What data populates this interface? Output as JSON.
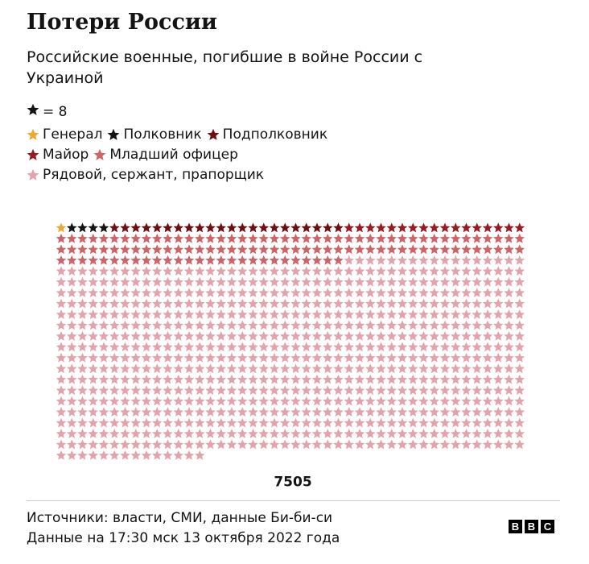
{
  "chart_data": {
    "type": "unit",
    "title": "Потери России",
    "subtitle": "Российские военные, погибшие в войне России с Украиной",
    "unit_label": "= 8",
    "unit_color": "#141414",
    "columns": 44,
    "series": [
      {
        "name": "Генерал",
        "color": "#f0a830",
        "value": 1
      },
      {
        "name": "Полковник",
        "color": "#141414",
        "value": 4
      },
      {
        "name": "Подполковник",
        "color": "#6e0d12",
        "value": 22
      },
      {
        "name": "Майор",
        "color": "#981a22",
        "value": 17
      },
      {
        "name": "Младший офицер",
        "color": "#cc6468",
        "value": 115
      },
      {
        "name": "Рядовой, сержант, прапорщик",
        "color": "#e3a3ab",
        "value": 779
      }
    ],
    "total": 7505,
    "source": "Источники: власти, СМИ, данные Би-би-си",
    "date": "Данные на 17:30 мск 13 октября 2022 года",
    "logo": [
      "B",
      "B",
      "C"
    ]
  }
}
